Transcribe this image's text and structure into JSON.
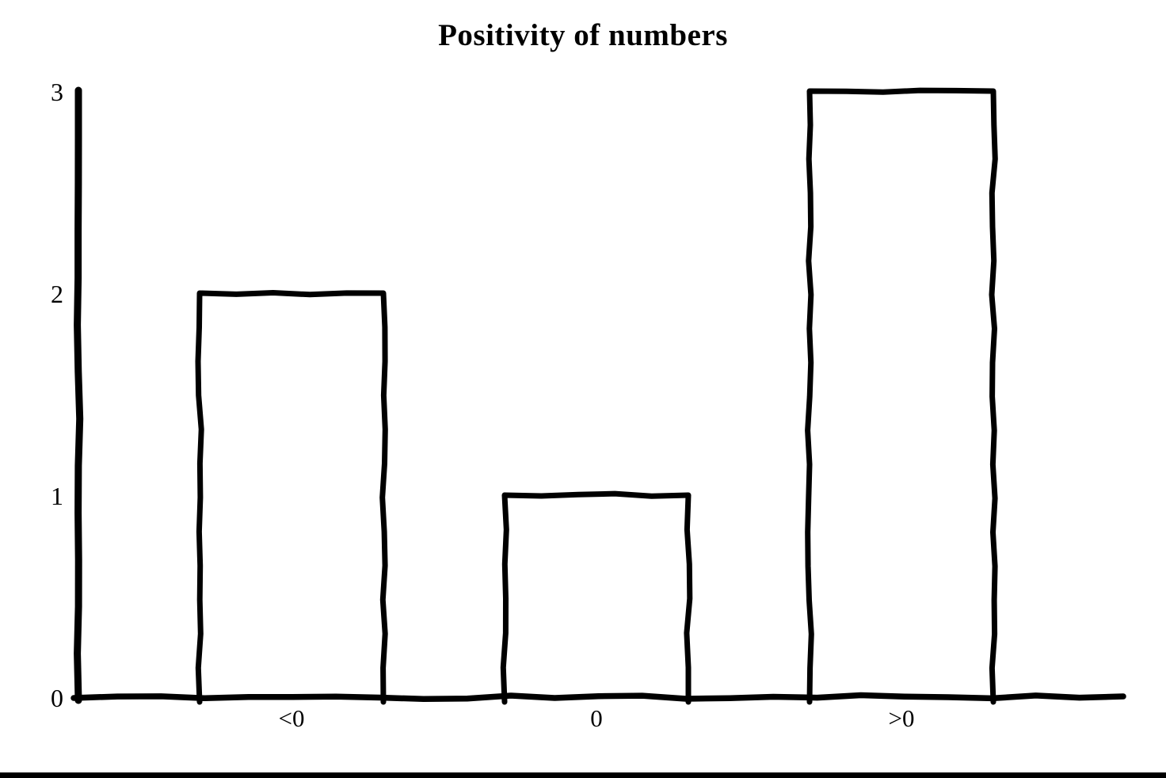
{
  "page": {
    "background_color": "#ffffff",
    "ink_color": "#000000"
  },
  "chart_data": {
    "type": "bar",
    "title": "Positivity of numbers",
    "categories": [
      "<0",
      "0",
      ">0"
    ],
    "values": [
      2,
      1,
      3
    ],
    "xlabel": "",
    "ylabel": "",
    "ylim": [
      0,
      3
    ],
    "yticks": [
      "0",
      "1",
      "2",
      "3"
    ],
    "grid": false,
    "legend": false,
    "bar_fill": "none",
    "bar_outline_color": "#000000",
    "style_note": "hand-drawn wobbly outline bars"
  }
}
